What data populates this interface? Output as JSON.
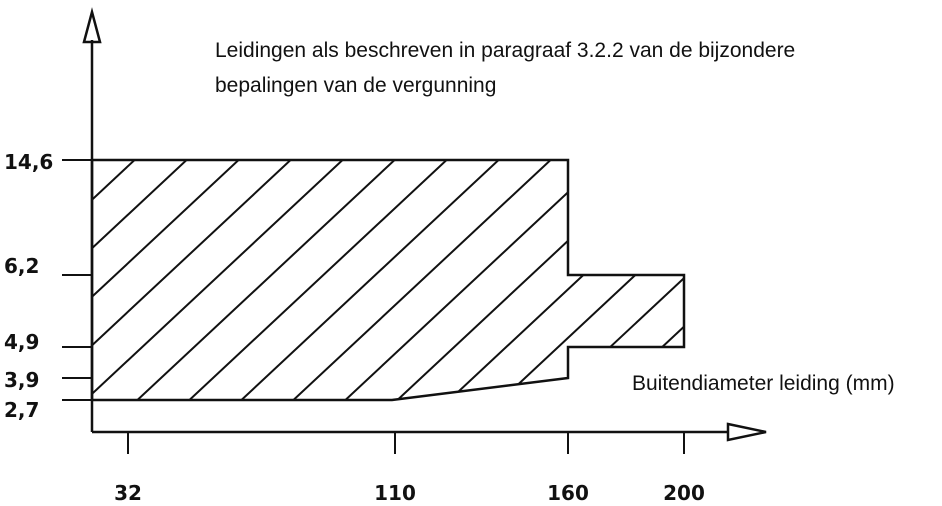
{
  "annotation_lines": [
    "Leidingen als beschreven in paragraaf 3.2.2 van de bijzondere",
    "bepalingen van de vergunning"
  ],
  "x_axis_label": "Buitendiameter leiding (mm)",
  "y_tick_labels": [
    "14,6",
    "6,2",
    "4,9",
    "3,9",
    "2,7"
  ],
  "x_tick_labels": [
    "32",
    "110",
    "160",
    "200"
  ]
}
